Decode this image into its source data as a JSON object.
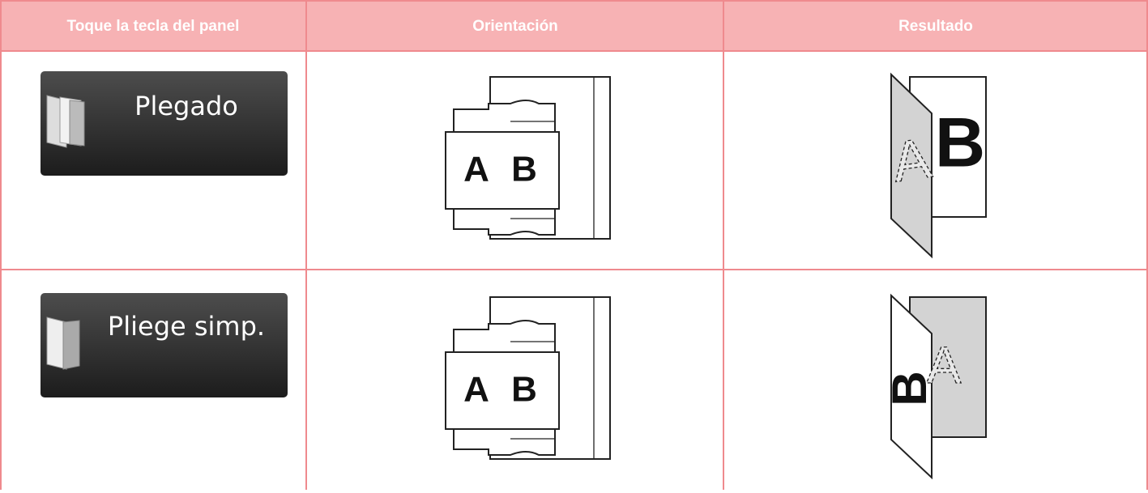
{
  "table": {
    "header": [
      "Toque la tecla del panel",
      "Orientación",
      "Resultado"
    ],
    "rows": [
      {
        "key": "Plegado",
        "orientation": [
          "A",
          "B"
        ],
        "result": [
          "A",
          "B"
        ]
      },
      {
        "key": "Pliege simp.",
        "orientation": [
          "A",
          "B"
        ],
        "result": [
          "B",
          "A"
        ]
      }
    ]
  }
}
